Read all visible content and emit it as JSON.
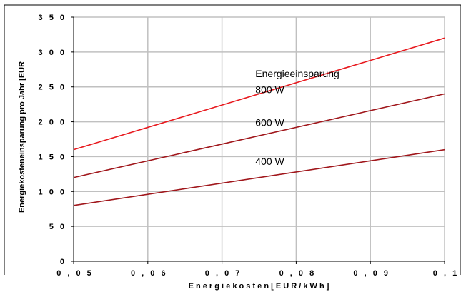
{
  "chart_data": {
    "type": "line",
    "title": "",
    "xlabel": "E n e r g i e k o s t e n   [ E U R / k W h ]",
    "ylabel": "Energiekosteneinsparung pro Jahr [EUR",
    "x_ticks": [
      "0 , 0 5",
      "0 , 0 6",
      "0 , 0 7",
      "0 , 0 8",
      "0 , 0 9",
      "0 , 1"
    ],
    "y_ticks": [
      "0",
      "5 0",
      "1 0 0",
      "1 5 0",
      "2 0 0",
      "2 5 0",
      "3 0 0",
      "3 5 0"
    ],
    "xlim": [
      0.05,
      0.1
    ],
    "ylim": [
      0,
      350
    ],
    "grid": true,
    "series": [
      {
        "name": "800 W",
        "x": [
          0.05,
          0.1
        ],
        "values": [
          160,
          320
        ],
        "color": "#e8191e"
      },
      {
        "name": "600 W",
        "x": [
          0.05,
          0.1
        ],
        "values": [
          120,
          240
        ],
        "color": "#a0161b"
      },
      {
        "name": "400 W",
        "x": [
          0.05,
          0.1
        ],
        "values": [
          80,
          160
        ],
        "color": "#a0161b"
      }
    ],
    "annotations": [
      {
        "text": "Energieeinsparung",
        "x": 0.0745,
        "y": 264
      },
      {
        "text": "800 W",
        "x": 0.0745,
        "y": 241
      },
      {
        "text": "600 W",
        "x": 0.0745,
        "y": 194
      },
      {
        "text": "400 W",
        "x": 0.0745,
        "y": 138
      }
    ]
  }
}
